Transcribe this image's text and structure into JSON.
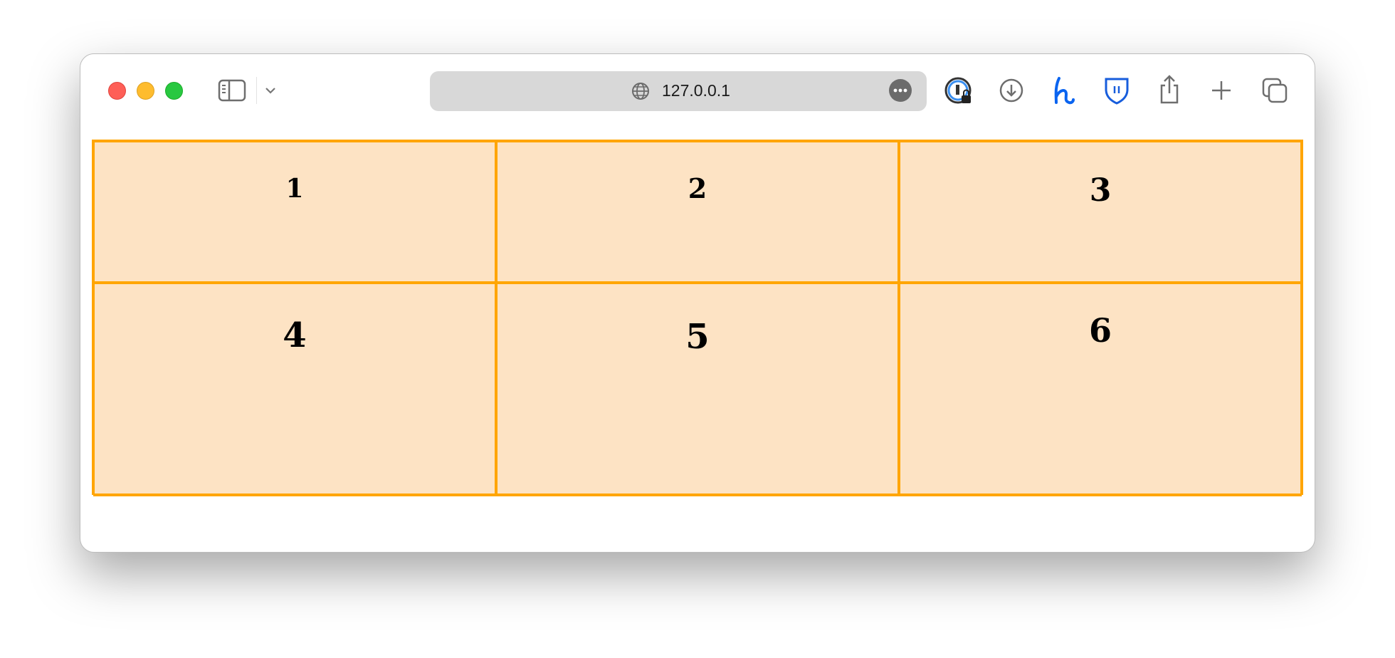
{
  "browser": {
    "url": "127.0.0.1",
    "traffic_lights": {
      "close": "#fe5f57",
      "minimize": "#febc2e",
      "zoom": "#28c840"
    },
    "toolbar_icons": [
      "sidebar-icon",
      "chevron-down-icon",
      "globe-icon",
      "more-icon",
      "password-manager-icon",
      "download-icon",
      "honey-extension-icon",
      "bitwarden-shield-icon",
      "share-icon",
      "new-tab-icon",
      "tab-overview-icon"
    ]
  },
  "grid": {
    "border_color": "#ffa500",
    "background": "#fde3c4",
    "cells": [
      "1",
      "2",
      "3",
      "4",
      "5",
      "6"
    ]
  }
}
